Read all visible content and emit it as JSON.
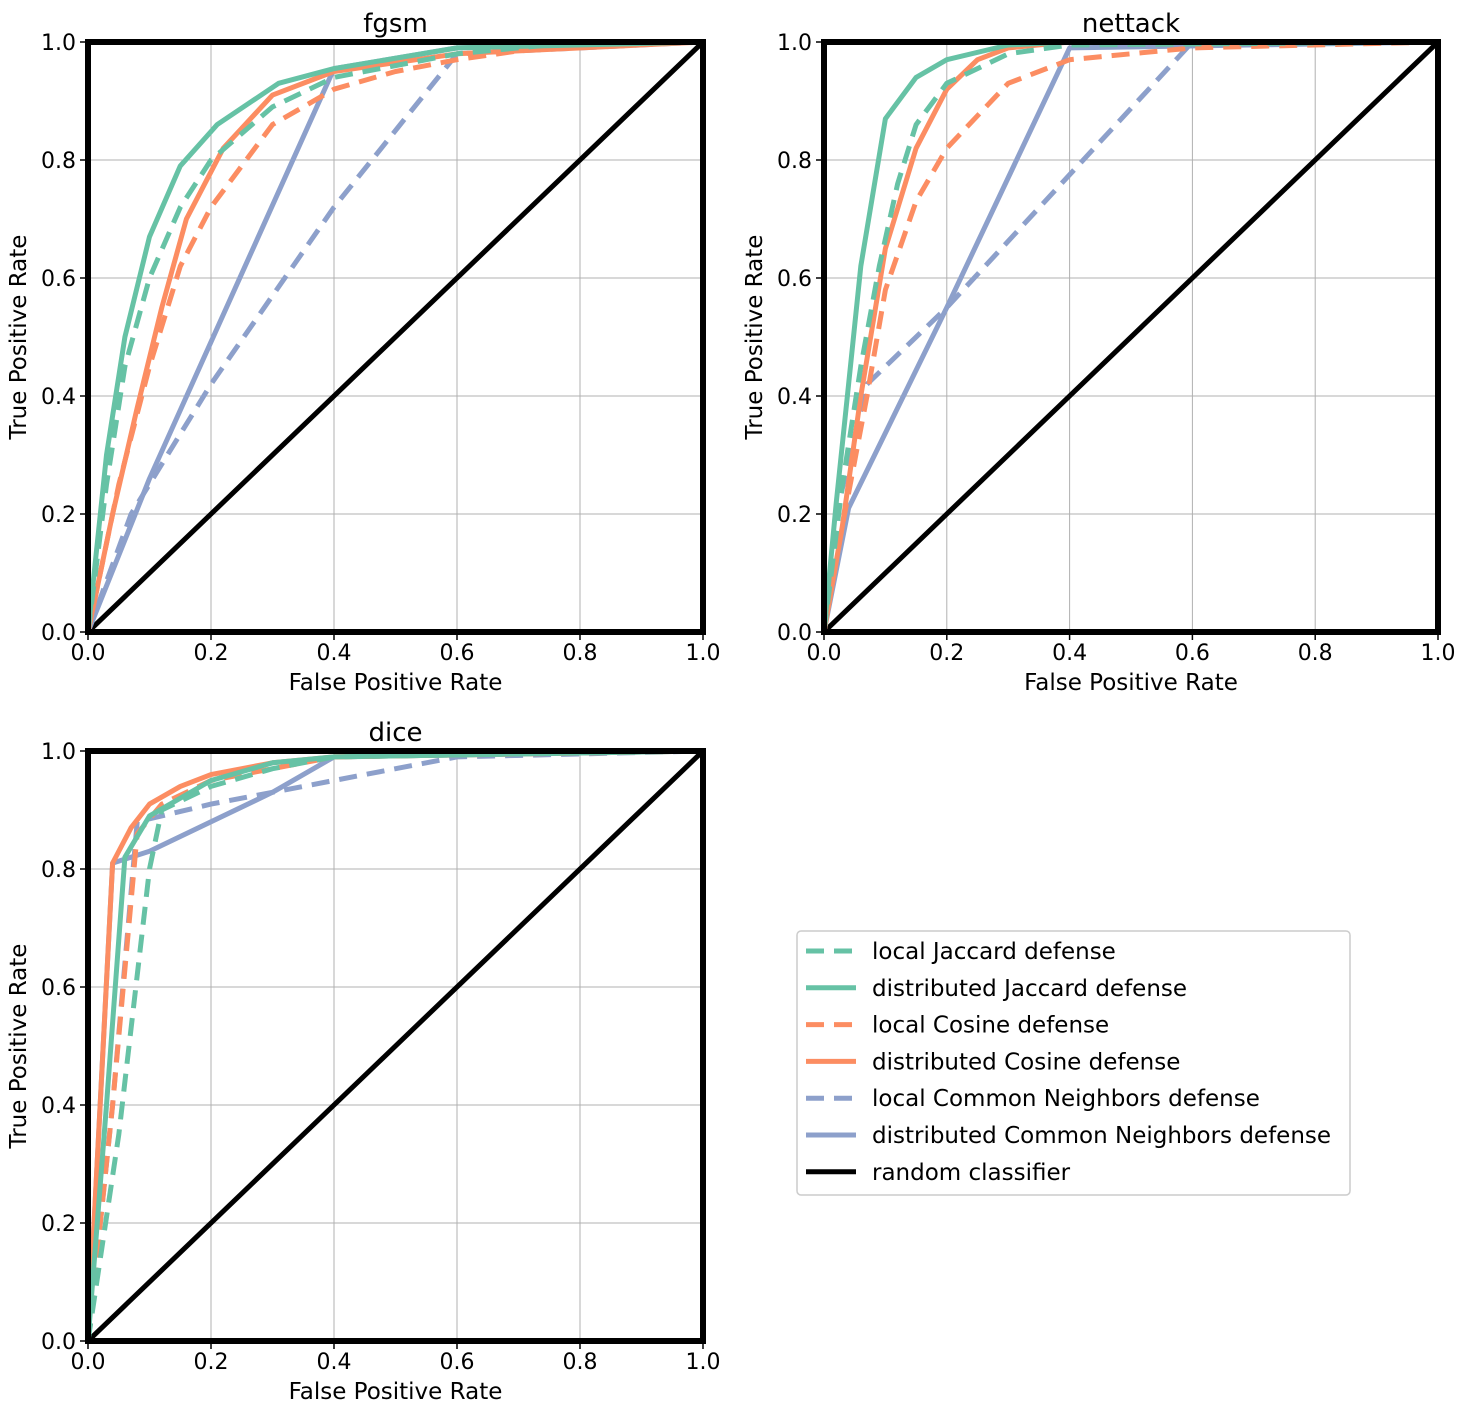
{
  "chart_data": [
    {
      "type": "line",
      "title": "fgsm",
      "xlabel": "False Positive Rate",
      "ylabel": "True Positive Rate",
      "xlim": [
        0,
        1
      ],
      "ylim": [
        0,
        1
      ],
      "xticks": [
        "0.0",
        "0.2",
        "0.4",
        "0.6",
        "0.8",
        "1.0"
      ],
      "yticks": [
        "0.0",
        "0.2",
        "0.4",
        "0.6",
        "0.8",
        "1.0"
      ],
      "grid": true,
      "series": [
        {
          "name": "local Jaccard defense",
          "x": [
            0,
            0.03,
            0.06,
            0.1,
            0.15,
            0.2,
            0.3,
            0.4,
            0.6,
            0.8,
            1.0
          ],
          "y": [
            0,
            0.25,
            0.45,
            0.6,
            0.72,
            0.8,
            0.89,
            0.94,
            0.98,
            1.0,
            1.0
          ]
        },
        {
          "name": "distributed Jaccard defense",
          "x": [
            0,
            0.03,
            0.06,
            0.1,
            0.15,
            0.21,
            0.31,
            0.4,
            0.6,
            1.0
          ],
          "y": [
            0,
            0.3,
            0.5,
            0.67,
            0.79,
            0.86,
            0.93,
            0.955,
            0.99,
            1.0
          ]
        },
        {
          "name": "local Cosine defense",
          "x": [
            0,
            0.05,
            0.1,
            0.15,
            0.2,
            0.3,
            0.4,
            0.5,
            0.6,
            0.8,
            1.0
          ],
          "y": [
            0,
            0.25,
            0.45,
            0.62,
            0.72,
            0.86,
            0.92,
            0.95,
            0.97,
            1.0,
            1.0
          ]
        },
        {
          "name": "distributed Cosine defense",
          "x": [
            0,
            0.04,
            0.08,
            0.12,
            0.16,
            0.22,
            0.3,
            0.4,
            0.6,
            1.0
          ],
          "y": [
            0,
            0.2,
            0.38,
            0.55,
            0.7,
            0.82,
            0.91,
            0.95,
            0.98,
            1.0
          ]
        },
        {
          "name": "local Common Neighbors defense",
          "x": [
            0,
            0.07,
            0.2,
            0.4,
            0.6,
            1.0
          ],
          "y": [
            0,
            0.2,
            0.42,
            0.72,
            0.98,
            1.0
          ]
        },
        {
          "name": "distributed Common Neighbors defense",
          "x": [
            0,
            0.1,
            0.4,
            0.6,
            1.0
          ],
          "y": [
            0,
            0.26,
            0.955,
            0.99,
            1.0
          ]
        },
        {
          "name": "random classifier",
          "x": [
            0,
            1
          ],
          "y": [
            0,
            1
          ]
        }
      ]
    },
    {
      "type": "line",
      "title": "nettack",
      "xlabel": "False Positive Rate",
      "ylabel": "True Positive Rate",
      "xlim": [
        0,
        1
      ],
      "ylim": [
        0,
        1
      ],
      "xticks": [
        "0.0",
        "0.2",
        "0.4",
        "0.6",
        "0.8",
        "1.0"
      ],
      "yticks": [
        "0.0",
        "0.2",
        "0.4",
        "0.6",
        "0.8",
        "1.0"
      ],
      "grid": true,
      "series": [
        {
          "name": "local Jaccard defense",
          "x": [
            0,
            0.03,
            0.06,
            0.09,
            0.12,
            0.15,
            0.2,
            0.3,
            0.4,
            1.0
          ],
          "y": [
            0,
            0.25,
            0.45,
            0.62,
            0.76,
            0.86,
            0.93,
            0.98,
            0.995,
            1.0
          ]
        },
        {
          "name": "distributed Jaccard defense",
          "x": [
            0,
            0.02,
            0.04,
            0.06,
            0.1,
            0.15,
            0.2,
            0.3,
            0.4,
            1.0
          ],
          "y": [
            0,
            0.22,
            0.42,
            0.62,
            0.87,
            0.94,
            0.97,
            0.995,
            1.0,
            1.0
          ]
        },
        {
          "name": "local Cosine defense",
          "x": [
            0,
            0.03,
            0.07,
            0.1,
            0.15,
            0.2,
            0.3,
            0.4,
            0.6,
            1.0
          ],
          "y": [
            0,
            0.18,
            0.4,
            0.58,
            0.73,
            0.82,
            0.93,
            0.97,
            0.99,
            1.0
          ]
        },
        {
          "name": "distributed Cosine defense",
          "x": [
            0,
            0.03,
            0.06,
            0.1,
            0.15,
            0.2,
            0.25,
            0.3,
            0.4,
            1.0
          ],
          "y": [
            0,
            0.18,
            0.4,
            0.65,
            0.82,
            0.92,
            0.97,
            0.99,
            1.0,
            1.0
          ]
        },
        {
          "name": "local Common Neighbors defense",
          "x": [
            0,
            0.02,
            0.07,
            0.2,
            0.6,
            1.0
          ],
          "y": [
            0,
            0.2,
            0.42,
            0.55,
            1.0,
            1.0
          ]
        },
        {
          "name": "distributed Common Neighbors defense",
          "x": [
            0,
            0.04,
            0.2,
            0.4,
            1.0
          ],
          "y": [
            0,
            0.21,
            0.55,
            0.99,
            1.0
          ]
        },
        {
          "name": "random classifier",
          "x": [
            0,
            1
          ],
          "y": [
            0,
            1
          ]
        }
      ]
    },
    {
      "type": "line",
      "title": "dice",
      "xlabel": "False Positive Rate",
      "ylabel": "True Positive Rate",
      "xlim": [
        0,
        1
      ],
      "ylim": [
        0,
        1
      ],
      "xticks": [
        "0.0",
        "0.2",
        "0.4",
        "0.6",
        "0.8",
        "1.0"
      ],
      "yticks": [
        "0.0",
        "0.2",
        "0.4",
        "0.6",
        "0.8",
        "1.0"
      ],
      "grid": true,
      "series": [
        {
          "name": "local Jaccard defense",
          "x": [
            0,
            0.05,
            0.1,
            0.12,
            0.2,
            0.3,
            0.4,
            1.0
          ],
          "y": [
            0,
            0.35,
            0.8,
            0.9,
            0.94,
            0.97,
            0.99,
            1.0
          ]
        },
        {
          "name": "distributed Jaccard defense",
          "x": [
            0,
            0.03,
            0.06,
            0.1,
            0.2,
            0.3,
            0.4,
            1.0
          ],
          "y": [
            0,
            0.4,
            0.82,
            0.89,
            0.95,
            0.98,
            0.99,
            1.0
          ]
        },
        {
          "name": "local Cosine defense",
          "x": [
            0,
            0.04,
            0.08,
            0.12,
            0.2,
            0.3,
            0.4,
            1.0
          ],
          "y": [
            0,
            0.4,
            0.86,
            0.91,
            0.95,
            0.97,
            0.99,
            1.0
          ]
        },
        {
          "name": "distributed Cosine defense",
          "x": [
            0,
            0.04,
            0.07,
            0.1,
            0.15,
            0.2,
            0.3,
            0.4,
            1.0
          ],
          "y": [
            0,
            0.81,
            0.87,
            0.91,
            0.94,
            0.96,
            0.98,
            0.99,
            1.0
          ]
        },
        {
          "name": "local Common Neighbors defense",
          "x": [
            0,
            0.04,
            0.08,
            0.2,
            0.4,
            0.6,
            1.0
          ],
          "y": [
            0,
            0.4,
            0.88,
            0.91,
            0.95,
            0.99,
            1.0
          ]
        },
        {
          "name": "distributed Common Neighbors defense",
          "x": [
            0,
            0.04,
            0.1,
            0.3,
            0.4,
            1.0
          ],
          "y": [
            0,
            0.81,
            0.83,
            0.93,
            0.99,
            1.0
          ]
        },
        {
          "name": "random classifier",
          "x": [
            0,
            1
          ],
          "y": [
            0,
            1
          ]
        }
      ]
    }
  ],
  "legend": {
    "placement": "right of bottom-left panel",
    "entries": [
      {
        "label": "local Jaccard defense",
        "color": "#66c2a5",
        "dashed": true
      },
      {
        "label": "distributed Jaccard defense",
        "color": "#66c2a5",
        "dashed": false
      },
      {
        "label": "local Cosine defense",
        "color": "#fc8d62",
        "dashed": true
      },
      {
        "label": "distributed Cosine defense",
        "color": "#fc8d62",
        "dashed": false
      },
      {
        "label": "local Common Neighbors defense",
        "color": "#8da0cb",
        "dashed": true
      },
      {
        "label": "distributed Common Neighbors defense",
        "color": "#8da0cb",
        "dashed": false
      },
      {
        "label": "random classifier",
        "color": "#000000",
        "dashed": false
      }
    ]
  }
}
